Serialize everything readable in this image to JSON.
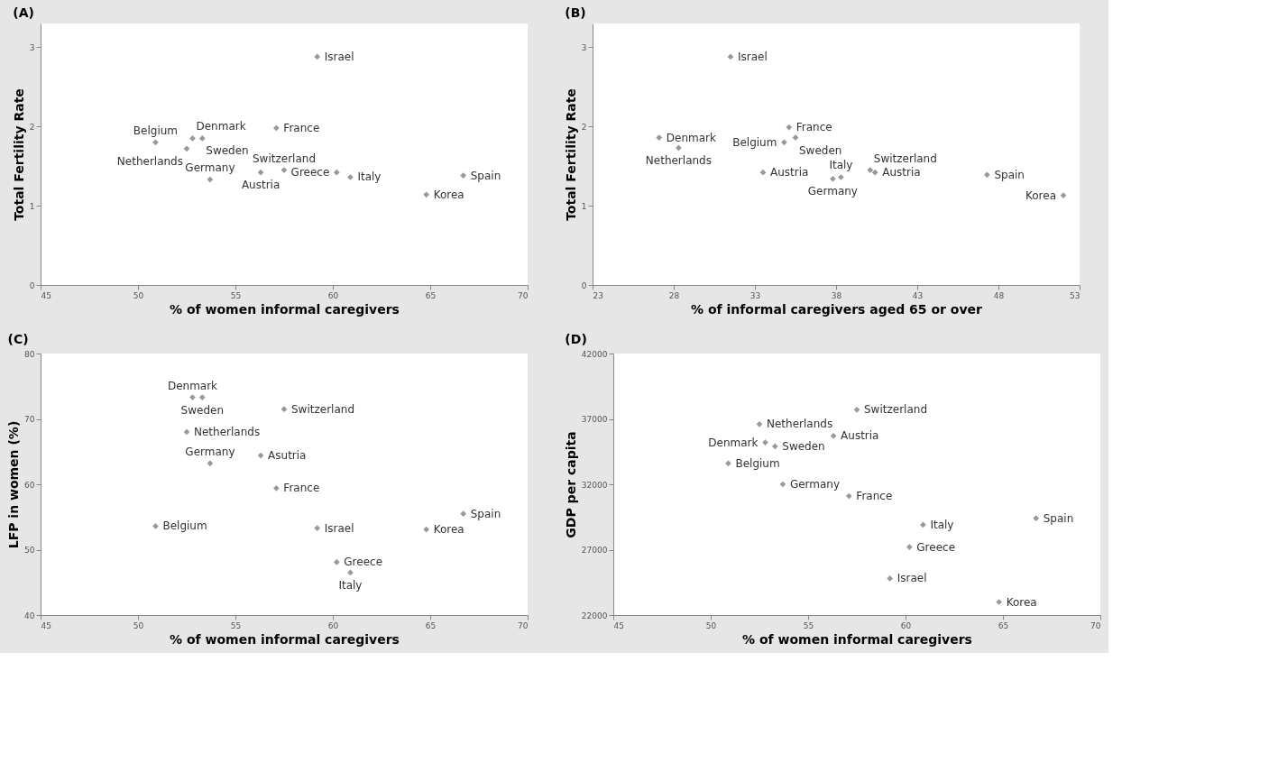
{
  "chart_data": [
    {
      "type": "scatter",
      "title": "(A)",
      "xlabel": "% of women informal caregivers",
      "ylabel": "Total Fertility Rate",
      "xlim": [
        45,
        70
      ],
      "xticks": [
        45,
        50,
        55,
        60,
        65,
        70
      ],
      "ylim": [
        0,
        3.3
      ],
      "yticks": [
        0,
        1,
        2,
        3
      ],
      "grid": false,
      "legend": false,
      "marker": "diamond",
      "series": [
        {
          "name": "Israel",
          "color": "#999999",
          "x": [
            59.2
          ],
          "values": [
            2.88
          ]
        },
        {
          "name": "France",
          "color": "#999999",
          "x": [
            57.1
          ],
          "values": [
            1.98
          ]
        },
        {
          "name": "Belgium",
          "color": "#999999",
          "x": [
            50.9
          ],
          "values": [
            1.8
          ]
        },
        {
          "name": "Denmark",
          "color": "#999999",
          "x": [
            52.8
          ],
          "values": [
            1.85
          ]
        },
        {
          "name": "Sweden",
          "color": "#999999",
          "x": [
            53.3
          ],
          "values": [
            1.85
          ]
        },
        {
          "name": "Netherlands",
          "color": "#999999",
          "x": [
            52.5
          ],
          "values": [
            1.72
          ]
        },
        {
          "name": "Switzerland",
          "color": "#999999",
          "x": [
            57.5
          ],
          "values": [
            1.45
          ]
        },
        {
          "name": "Austria",
          "color": "#999999",
          "x": [
            56.3
          ],
          "values": [
            1.42
          ]
        },
        {
          "name": "Germany",
          "color": "#999999",
          "x": [
            53.7
          ],
          "values": [
            1.33
          ]
        },
        {
          "name": "Greece",
          "color": "#999999",
          "x": [
            60.2
          ],
          "values": [
            1.42
          ]
        },
        {
          "name": "Italy",
          "color": "#999999",
          "x": [
            60.9
          ],
          "values": [
            1.36
          ]
        },
        {
          "name": "Korea",
          "color": "#999999",
          "x": [
            64.8
          ],
          "values": [
            1.14
          ]
        },
        {
          "name": "Spain",
          "color": "#999999",
          "x": [
            66.7
          ],
          "values": [
            1.38
          ]
        }
      ]
    },
    {
      "type": "scatter",
      "title": "(B)",
      "xlabel": "% of informal caregivers aged 65 or over",
      "ylabel": "Total Fertility Rate",
      "xlim": [
        23,
        53
      ],
      "xticks": [
        23,
        28,
        33,
        38,
        43,
        48,
        53
      ],
      "ylim": [
        0,
        3.3
      ],
      "yticks": [
        0,
        1,
        2,
        3
      ],
      "grid": false,
      "legend": false,
      "marker": "diamond",
      "series": [
        {
          "name": "Israel",
          "color": "#999999",
          "x": [
            31.5
          ],
          "values": [
            2.88
          ]
        },
        {
          "name": "France",
          "color": "#999999",
          "x": [
            35.1
          ],
          "values": [
            1.99
          ]
        },
        {
          "name": "Sweden",
          "color": "#999999",
          "x": [
            35.5
          ],
          "values": [
            1.86
          ]
        },
        {
          "name": "Belgium",
          "color": "#999999",
          "x": [
            34.8
          ],
          "values": [
            1.8
          ]
        },
        {
          "name": "Denmark",
          "color": "#999999",
          "x": [
            27.1
          ],
          "values": [
            1.86
          ]
        },
        {
          "name": "Netherlands",
          "color": "#999999",
          "x": [
            28.3
          ],
          "values": [
            1.73
          ]
        },
        {
          "name": "Austria",
          "color": "#999999",
          "x": [
            33.5
          ],
          "values": [
            1.42
          ]
        },
        {
          "name": "Switzerland",
          "color": "#999999",
          "x": [
            40.1
          ],
          "values": [
            1.45
          ]
        },
        {
          "name": "Austria",
          "color": "#999999",
          "x": [
            40.4
          ],
          "values": [
            1.42
          ]
        },
        {
          "name": "Italy",
          "color": "#999999",
          "x": [
            38.3
          ],
          "values": [
            1.36
          ]
        },
        {
          "name": "Germany",
          "color": "#999999",
          "x": [
            37.8
          ],
          "values": [
            1.34
          ]
        },
        {
          "name": "Spain",
          "color": "#999999",
          "x": [
            47.3
          ],
          "values": [
            1.39
          ]
        },
        {
          "name": "Korea",
          "color": "#999999",
          "x": [
            52.0
          ],
          "values": [
            1.13
          ]
        }
      ]
    },
    {
      "type": "scatter",
      "title": "(C)",
      "xlabel": "% of women informal caregivers",
      "ylabel": "LFP in women (%)",
      "xlim": [
        45,
        70
      ],
      "xticks": [
        45,
        50,
        55,
        60,
        65,
        70
      ],
      "ylim": [
        40,
        80
      ],
      "yticks": [
        40,
        50,
        60,
        70,
        80
      ],
      "grid": false,
      "legend": false,
      "marker": "diamond",
      "series": [
        {
          "name": "Denmark",
          "color": "#999999",
          "x": [
            52.8
          ],
          "values": [
            73.3
          ]
        },
        {
          "name": "Sweden",
          "color": "#999999",
          "x": [
            53.3
          ],
          "values": [
            73.3
          ]
        },
        {
          "name": "Switzerland",
          "color": "#999999",
          "x": [
            57.5
          ],
          "values": [
            71.5
          ]
        },
        {
          "name": "Netherlands",
          "color": "#999999",
          "x": [
            52.5
          ],
          "values": [
            68.0
          ]
        },
        {
          "name": "Asutria",
          "color": "#999999",
          "x": [
            56.3
          ],
          "values": [
            64.4
          ]
        },
        {
          "name": "Germany",
          "color": "#999999",
          "x": [
            53.7
          ],
          "values": [
            63.2
          ]
        },
        {
          "name": "France",
          "color": "#999999",
          "x": [
            57.1
          ],
          "values": [
            59.4
          ]
        },
        {
          "name": "Belgium",
          "color": "#999999",
          "x": [
            50.9
          ],
          "values": [
            53.6
          ]
        },
        {
          "name": "Israel",
          "color": "#999999",
          "x": [
            59.2
          ],
          "values": [
            53.3
          ]
        },
        {
          "name": "Korea",
          "color": "#999999",
          "x": [
            64.8
          ],
          "values": [
            53.1
          ]
        },
        {
          "name": "Spain",
          "color": "#999999",
          "x": [
            66.7
          ],
          "values": [
            55.5
          ]
        },
        {
          "name": "Greece",
          "color": "#999999",
          "x": [
            60.2
          ],
          "values": [
            48.1
          ]
        },
        {
          "name": "Italy",
          "color": "#999999",
          "x": [
            60.9
          ],
          "values": [
            46.5
          ]
        }
      ]
    },
    {
      "type": "scatter",
      "title": "(D)",
      "xlabel": "% of women informal caregivers",
      "ylabel": "GDP per capita",
      "xlim": [
        45,
        70
      ],
      "xticks": [
        45,
        50,
        55,
        60,
        65,
        70
      ],
      "ylim": [
        22000,
        42000
      ],
      "yticks": [
        22000,
        27000,
        32000,
        37000,
        42000
      ],
      "grid": false,
      "legend": false,
      "marker": "diamond",
      "series": [
        {
          "name": "Switzerland",
          "color": "#999999",
          "x": [
            57.5
          ],
          "values": [
            37700
          ]
        },
        {
          "name": "Netherlands",
          "color": "#999999",
          "x": [
            52.5
          ],
          "values": [
            36600
          ]
        },
        {
          "name": "Denmark",
          "color": "#999999",
          "x": [
            52.8
          ],
          "values": [
            35200
          ]
        },
        {
          "name": "Austria",
          "color": "#999999",
          "x": [
            56.3
          ],
          "values": [
            35700
          ]
        },
        {
          "name": "Sweden",
          "color": "#999999",
          "x": [
            53.3
          ],
          "values": [
            34900
          ]
        },
        {
          "name": "Belgium",
          "color": "#999999",
          "x": [
            50.9
          ],
          "values": [
            33600
          ]
        },
        {
          "name": "Germany",
          "color": "#999999",
          "x": [
            53.7
          ],
          "values": [
            32000
          ]
        },
        {
          "name": "France",
          "color": "#999999",
          "x": [
            57.1
          ],
          "values": [
            31100
          ]
        },
        {
          "name": "Italy",
          "color": "#999999",
          "x": [
            60.9
          ],
          "values": [
            28900
          ]
        },
        {
          "name": "Spain",
          "color": "#999999",
          "x": [
            66.7
          ],
          "values": [
            29400
          ]
        },
        {
          "name": "Greece",
          "color": "#999999",
          "x": [
            60.2
          ],
          "values": [
            27200
          ]
        },
        {
          "name": "Israel",
          "color": "#999999",
          "x": [
            59.2
          ],
          "values": [
            24800
          ]
        },
        {
          "name": "Korea",
          "color": "#999999",
          "x": [
            64.8
          ],
          "values": [
            23000
          ]
        }
      ]
    }
  ]
}
